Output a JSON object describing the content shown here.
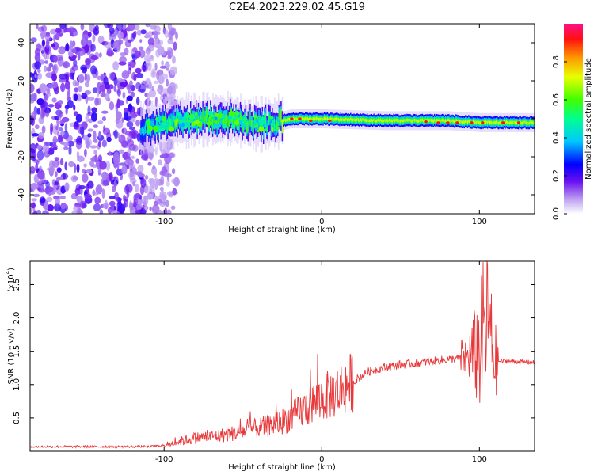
{
  "title": "C2E4.2023.229.02.45.G19",
  "chart_data": [
    {
      "type": "heatmap",
      "xlabel": "Height of straight line (km)",
      "ylabel": "Frequency (Hz)",
      "xlim": [
        -185,
        135
      ],
      "ylim": [
        -50,
        50
      ],
      "xticks": [
        -100,
        0,
        100
      ],
      "xtick_labels": [
        "-100",
        "0",
        "100"
      ],
      "yticks": [
        40,
        20,
        0,
        -20,
        -40
      ],
      "ytick_labels": [
        "40",
        "20",
        "0",
        "-20",
        "-40"
      ],
      "colorbar": {
        "label": "Normalized spectral amplitude",
        "range": [
          0.0,
          1.0
        ],
        "ticks": [
          0.0,
          0.2,
          0.4,
          0.6,
          0.8
        ],
        "tick_labels": [
          "0.0",
          "0.2",
          "0.4",
          "0.6",
          "0.8"
        ]
      },
      "noise_region_x": [
        -185,
        -100
      ],
      "signal_track": {
        "x": [
          -115,
          -90,
          -60,
          -40,
          -30,
          -20,
          0,
          40,
          80,
          100,
          135
        ],
        "center_freq": [
          -5,
          -1,
          0,
          -3,
          -2,
          0,
          0,
          -1,
          -1,
          -2,
          -2
        ],
        "peak_amplitude": [
          0.4,
          0.55,
          0.6,
          0.55,
          0.5,
          0.9,
          0.85,
          0.7,
          0.9,
          0.9,
          0.9
        ]
      }
    },
    {
      "type": "line",
      "xlabel": "Height of straight line (km)",
      "ylabel": "SNR (10 * v/v)",
      "y_multiplier_label": "(x10",
      "y_multiplier_exp": "4",
      "y_multiplier_close": ")",
      "xlim": [
        -185,
        135
      ],
      "ylim": [
        0,
        28500
      ],
      "xticks": [
        -100,
        0,
        100
      ],
      "xtick_labels": [
        "-100",
        "0",
        "100"
      ],
      "yticks": [
        5000,
        10000,
        15000,
        20000,
        25000
      ],
      "ytick_labels": [
        "0.5",
        "1.0",
        "1.5",
        "2.0",
        "2.5"
      ],
      "color": "#e8383a",
      "series": [
        {
          "x": [
            -185,
            -130,
            -110,
            -100,
            -90,
            -80,
            -70,
            -60,
            -50,
            -40,
            -30,
            -20,
            -10,
            0,
            10,
            20,
            30,
            40,
            50,
            60,
            70,
            80,
            90,
            95,
            100,
            105,
            110,
            115,
            120,
            135
          ],
          "values": [
            700,
            700,
            700,
            900,
            1500,
            2000,
            2200,
            2500,
            3000,
            3500,
            4000,
            5000,
            6500,
            8000,
            9000,
            10500,
            12000,
            12600,
            13000,
            13200,
            13500,
            13800,
            14000,
            14500,
            15000,
            20000,
            13500,
            13500,
            13500,
            13300
          ]
        }
      ]
    }
  ]
}
